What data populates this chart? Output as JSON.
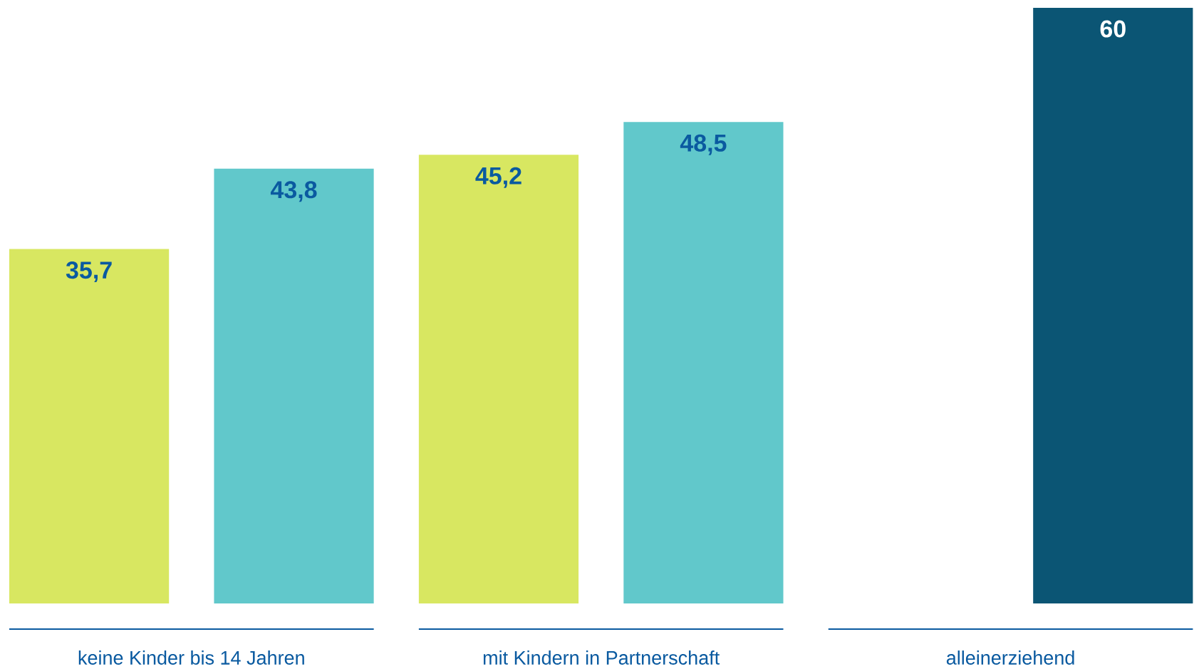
{
  "chart_data": {
    "type": "bar",
    "categories": [
      "keine Kinder bis 14 Jahren",
      "mit Kindern in Partnerschaft",
      "alleinerziehend"
    ],
    "series": [
      {
        "color": "#d8e761",
        "values": [
          35.7,
          45.2,
          null
        ],
        "value_labels": [
          "35,7",
          "45,2",
          null
        ]
      },
      {
        "color": "#61c8cb",
        "colors": [
          "#61c8cb",
          "#61c8cb",
          "#0b5574"
        ],
        "values": [
          43.8,
          48.5,
          60
        ],
        "value_labels": [
          "43,8",
          "48,5",
          "60"
        ]
      }
    ]
  }
}
